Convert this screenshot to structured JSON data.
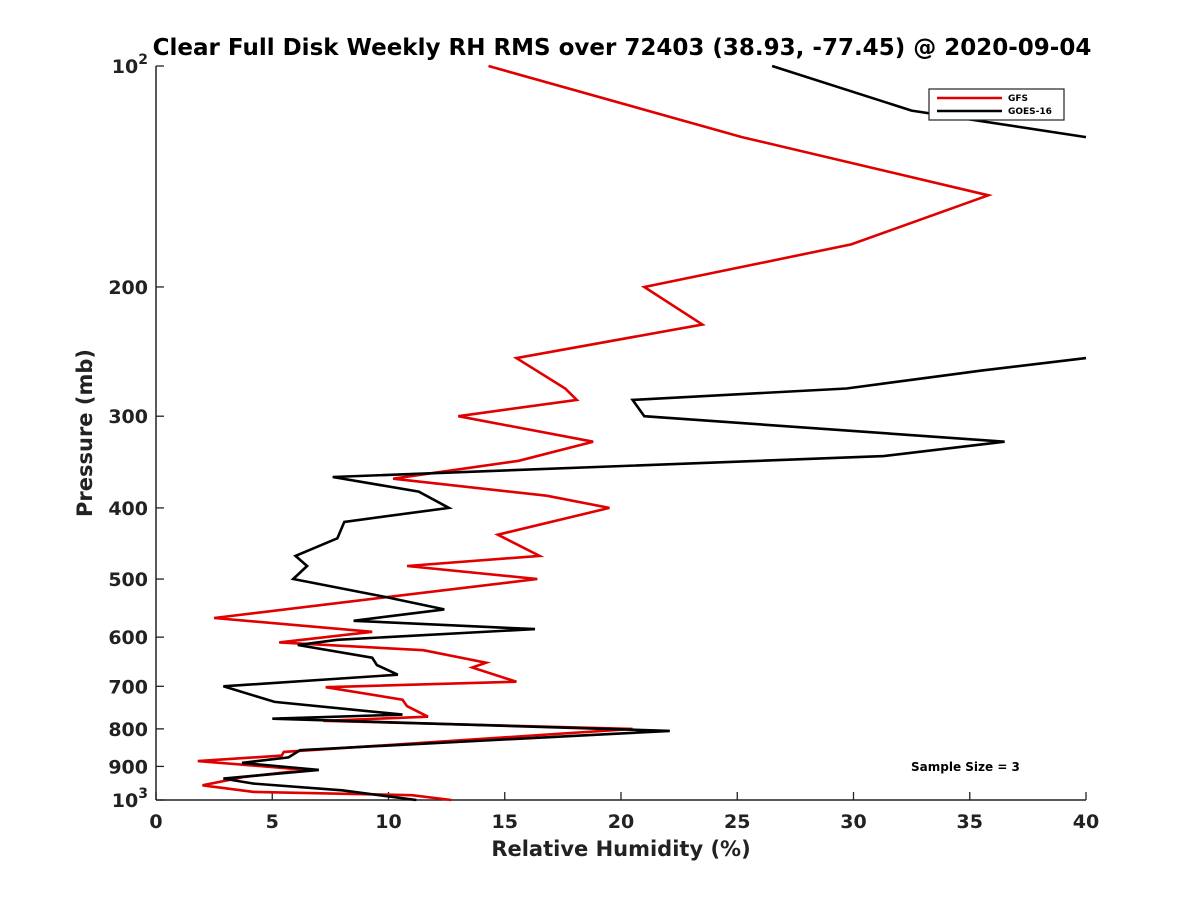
{
  "chart_data": {
    "type": "line",
    "title": "Clear Full Disk Weekly RH RMS over 72403 (38.93, -77.45) @ 2020-09-04",
    "xlabel": "Relative Humidity (%)",
    "ylabel": "Pressure (mb)",
    "xlim": [
      0,
      40
    ],
    "ylim": [
      100,
      1000
    ],
    "yscale": "log",
    "y_reversed": true,
    "grid": false,
    "legend_position": "top-right",
    "x_ticks": [
      0,
      5,
      10,
      15,
      20,
      25,
      30,
      35,
      40
    ],
    "x_tick_labels": [
      "0",
      "5",
      "10",
      "15",
      "20",
      "25",
      "30",
      "35",
      "40"
    ],
    "y_ticks": [
      100,
      200,
      300,
      400,
      500,
      600,
      700,
      800,
      900,
      1000
    ],
    "y_tick_labels": [
      {
        "base": "10",
        "exp": "2"
      },
      {
        "base": "200",
        "exp": ""
      },
      {
        "base": "300",
        "exp": ""
      },
      {
        "base": "400",
        "exp": ""
      },
      {
        "base": "500",
        "exp": ""
      },
      {
        "base": "600",
        "exp": ""
      },
      {
        "base": "700",
        "exp": ""
      },
      {
        "base": "800",
        "exp": ""
      },
      {
        "base": "900",
        "exp": ""
      },
      {
        "base": "10",
        "exp": "3"
      }
    ],
    "annotation": "Sample Size = 3",
    "series": [
      {
        "name": "GFS",
        "color": "#e00000",
        "points": [
          [
            14.3,
            100
          ],
          [
            25.2,
            125
          ],
          [
            35.8,
            150
          ],
          [
            29.9,
            175
          ],
          [
            21.0,
            200
          ],
          [
            23.5,
            225
          ],
          [
            15.5,
            250
          ],
          [
            17.6,
            275
          ],
          [
            18.1,
            285
          ],
          [
            13.0,
            300
          ],
          [
            18.8,
            325
          ],
          [
            15.6,
            345
          ],
          [
            10.2,
            365
          ],
          [
            16.8,
            385
          ],
          [
            19.5,
            400
          ],
          [
            14.7,
            435
          ],
          [
            16.5,
            465
          ],
          [
            10.8,
            480
          ],
          [
            16.4,
            500
          ],
          [
            2.5,
            565
          ],
          [
            9.3,
            590
          ],
          [
            5.3,
            610
          ],
          [
            11.5,
            625
          ],
          [
            14.2,
            650
          ],
          [
            13.6,
            660
          ],
          [
            15.5,
            690
          ],
          [
            7.3,
            702
          ],
          [
            10.6,
            730
          ],
          [
            10.8,
            745
          ],
          [
            11.7,
            770
          ],
          [
            7.2,
            780
          ],
          [
            20.5,
            800
          ],
          [
            5.5,
            860
          ],
          [
            5.4,
            870
          ],
          [
            1.8,
            885
          ],
          [
            6.5,
            910
          ],
          [
            3.8,
            930
          ],
          [
            2.0,
            955
          ],
          [
            4.2,
            975
          ],
          [
            11.0,
            985
          ],
          [
            12.7,
            1000
          ]
        ]
      },
      {
        "name": "GOES-16",
        "color": "#000000",
        "points": [
          [
            26.5,
            100
          ],
          [
            32.5,
            115
          ],
          [
            40.0,
            125
          ],
          [
            null,
            null
          ],
          [
            40.0,
            250
          ],
          [
            35.5,
            260
          ],
          [
            29.7,
            275
          ],
          [
            20.5,
            285
          ],
          [
            21.0,
            300
          ],
          [
            36.5,
            325
          ],
          [
            31.3,
            340
          ],
          [
            7.6,
            363
          ],
          [
            11.3,
            380
          ],
          [
            12.6,
            400
          ],
          [
            8.1,
            418
          ],
          [
            7.8,
            440
          ],
          [
            6.0,
            465
          ],
          [
            6.5,
            480
          ],
          [
            5.9,
            500
          ],
          [
            10.0,
            530
          ],
          [
            12.4,
            550
          ],
          [
            8.5,
            570
          ],
          [
            16.3,
            585
          ],
          [
            7.8,
            605
          ],
          [
            6.1,
            615
          ],
          [
            9.3,
            640
          ],
          [
            9.5,
            655
          ],
          [
            10.4,
            675
          ],
          [
            2.9,
            700
          ],
          [
            5.1,
            735
          ],
          [
            10.6,
            765
          ],
          [
            5.0,
            775
          ],
          [
            22.1,
            805
          ],
          [
            6.2,
            855
          ],
          [
            5.7,
            875
          ],
          [
            3.7,
            890
          ],
          [
            7.0,
            910
          ],
          [
            2.9,
            935
          ],
          [
            4.2,
            950
          ],
          [
            8.0,
            970
          ],
          [
            11.2,
            1000
          ]
        ]
      }
    ]
  }
}
